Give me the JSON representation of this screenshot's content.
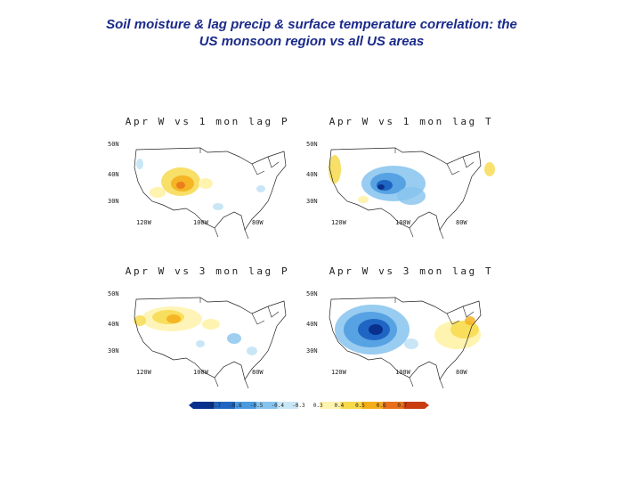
{
  "title": {
    "line1": "Soil moisture & lag precip & surface temperature correlation: the",
    "line2": "US monsoon region vs all US areas"
  },
  "panels": [
    {
      "title": "Apr W vs 1 mon lag P",
      "lats": [
        "50N",
        "40N",
        "30N"
      ],
      "lons": [
        "120W",
        "100W",
        "80W"
      ]
    },
    {
      "title": "Apr W vs 1 mon lag T",
      "lats": [
        "50N",
        "40N",
        "30N"
      ],
      "lons": [
        "120W",
        "100W",
        "80W"
      ]
    },
    {
      "title": "Apr W vs 3 mon lag P",
      "lats": [
        "50N",
        "40N",
        "30N"
      ],
      "lons": [
        "120W",
        "100W",
        "80W"
      ]
    },
    {
      "title": "Apr W vs 3 mon lag T",
      "lats": [
        "50N",
        "40N",
        "30N"
      ],
      "lons": [
        "120W",
        "100W",
        "80W"
      ]
    }
  ],
  "colorbar": {
    "labels": [
      "-0.7",
      "-0.6",
      "-0.5",
      "-0.4",
      "-0.3",
      "0.3",
      "0.4",
      "0.5",
      "0.6",
      "0.7"
    ],
    "colors": [
      "#08308c",
      "#1f66c4",
      "#4a9ae0",
      "#86c3ee",
      "#c9e6f6",
      "#ffffff",
      "#fff3b0",
      "#f7d94c",
      "#f4ae1a",
      "#e8701a",
      "#c83c10"
    ]
  }
}
